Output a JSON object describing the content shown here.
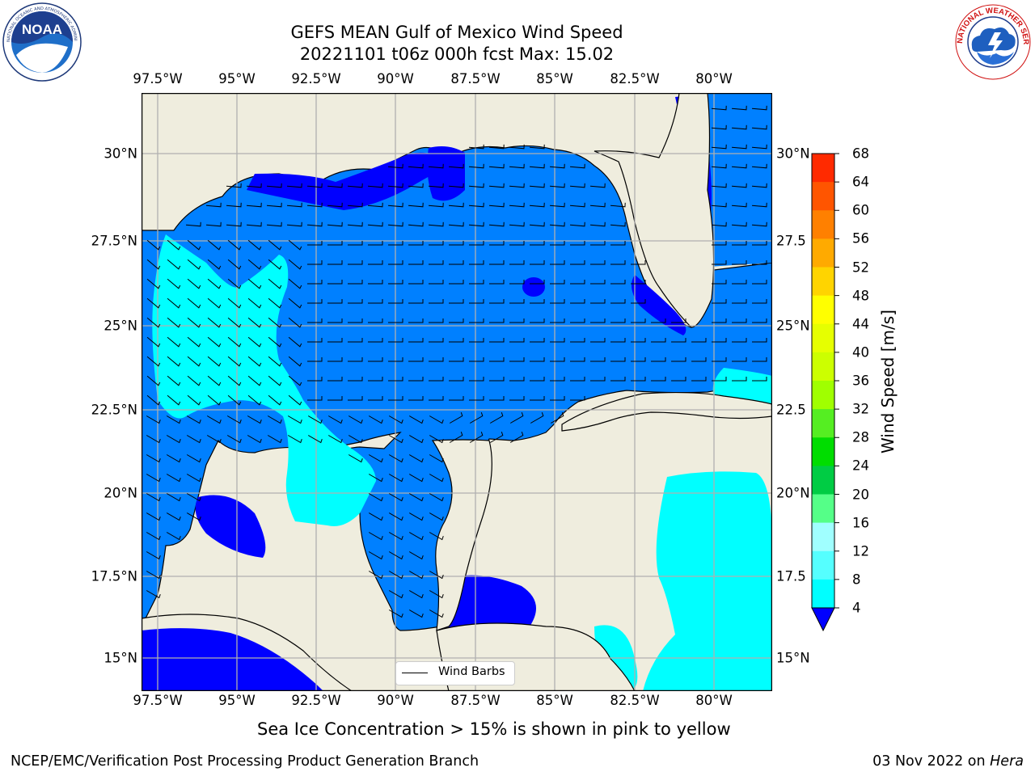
{
  "header": {
    "title_line1": "GEFS MEAN Gulf of Mexico Wind Speed",
    "title_line2": "20221101 t06z 000h fcst   Max: 15.02"
  },
  "logos": {
    "left": {
      "name": "noaa-logo",
      "text": "NOAA",
      "ring_text": "NATIONAL OCEANIC AND ATMOSPHERIC ADMINISTRATION · U.S. DEPARTMENT OF COMMERCE"
    },
    "right": {
      "name": "nws-logo",
      "ring_text": "NATIONAL WEATHER SERVICE"
    }
  },
  "map": {
    "lon_labels": [
      "97.5°W",
      "95°W",
      "92.5°W",
      "90°W",
      "87.5°W",
      "85°W",
      "82.5°W",
      "80°W"
    ],
    "lat_labels_left": [
      "30°N",
      "27.5°N",
      "25°N",
      "22.5°N",
      "20°N",
      "17.5°N",
      "15°N"
    ],
    "lat_labels_right": [
      "30°N",
      "27.5",
      "25°N",
      "22.5",
      "20°N",
      "17.5",
      "15°N"
    ],
    "legend_label": "Wind Barbs",
    "colors": {
      "land": "#efedde",
      "water_dark": "#0000ff",
      "water_mid": "#0080ff",
      "water_light": "#00ffff",
      "grid": "#b0b0b0"
    }
  },
  "colorbar": {
    "title": "Wind Speed [m/s]",
    "tick_labels": [
      "68",
      "64",
      "60",
      "56",
      "52",
      "48",
      "44",
      "40",
      "36",
      "32",
      "28",
      "24",
      "20",
      "16",
      "12",
      "8",
      "4"
    ],
    "colors": [
      "#ff0000",
      "#ff2a00",
      "#ff5500",
      "#ff8000",
      "#ffaa00",
      "#ffd400",
      "#ffff00",
      "#e6ff00",
      "#ccff00",
      "#a0ff00",
      "#55ee22",
      "#00dd00",
      "#00cc44",
      "#55ff88",
      "#a0ffff",
      "#55ffff",
      "#00ffff",
      "#0080ff"
    ],
    "under_color": "#0000ff"
  },
  "footer": {
    "note": "Sea Ice Concentration > 15% is shown in pink to yellow",
    "credit": "NCEP/EMC/Verification Post Processing Product Generation Branch",
    "date_prefix": "03 Nov 2022 on ",
    "date_machine": "Hera"
  }
}
